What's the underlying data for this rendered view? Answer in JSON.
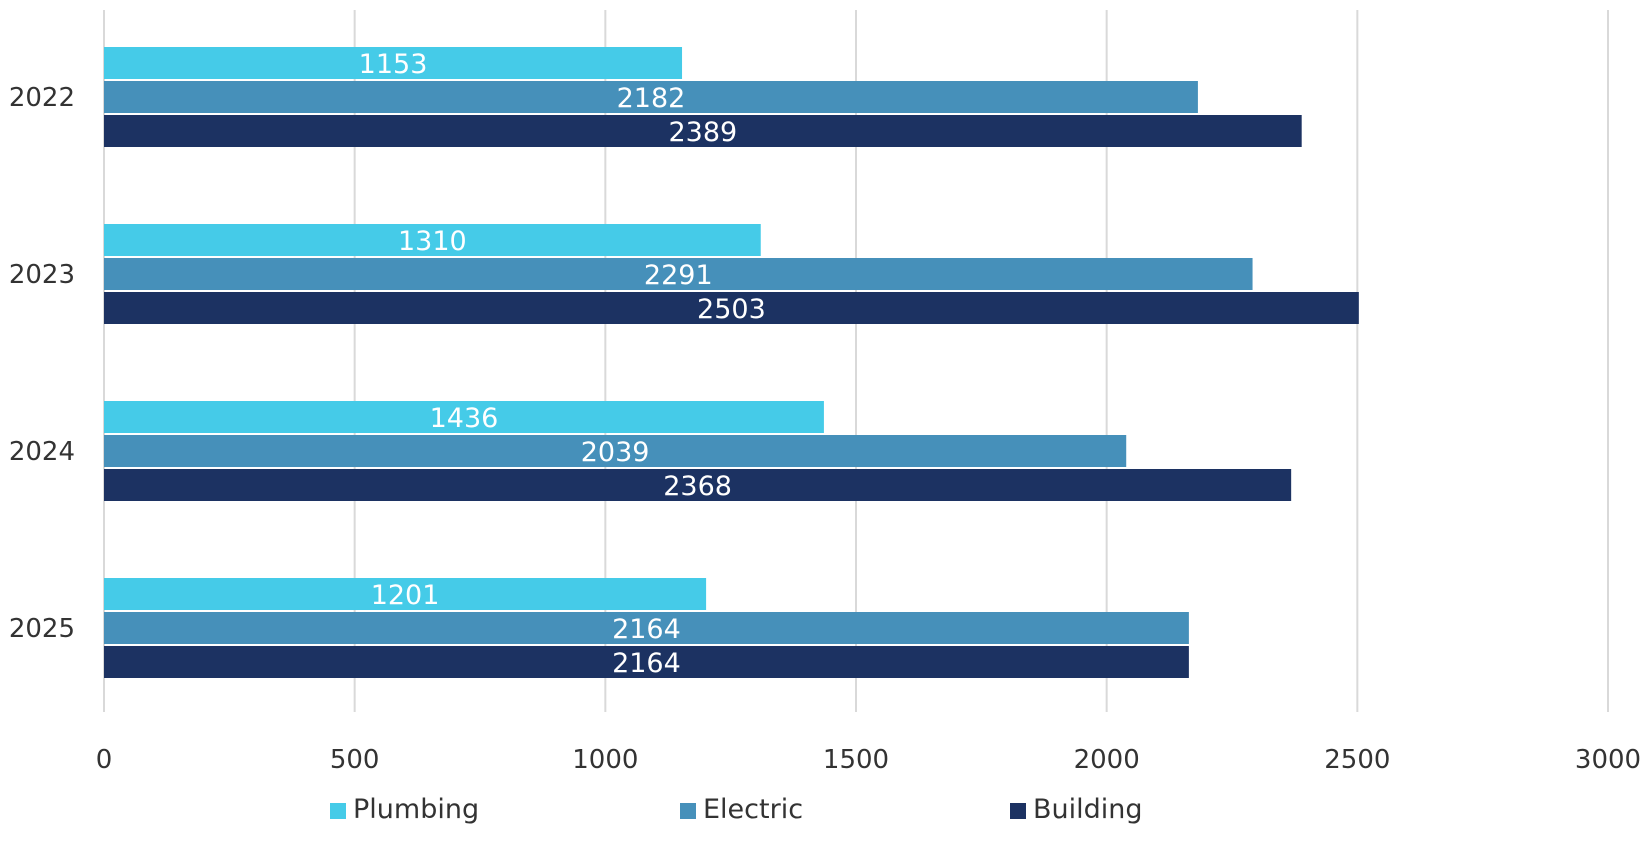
{
  "chart_data": {
    "type": "bar",
    "orientation": "horizontal",
    "categories": [
      "2022",
      "2023",
      "2024",
      "2025"
    ],
    "series": [
      {
        "name": "Plumbing",
        "color": "#45CBE8",
        "values": [
          1153,
          1310,
          1436,
          1201
        ]
      },
      {
        "name": "Electric",
        "color": "#4690BA",
        "values": [
          2182,
          2291,
          2039,
          2164
        ]
      },
      {
        "name": "Building",
        "color": "#1C3262",
        "values": [
          2389,
          2503,
          2368,
          2164
        ]
      }
    ],
    "xlim": [
      0,
      3000
    ],
    "x_ticks": [
      0,
      500,
      1000,
      1500,
      2000,
      2500,
      3000
    ],
    "grid": true,
    "legend_position": "bottom",
    "data_labels": true
  }
}
